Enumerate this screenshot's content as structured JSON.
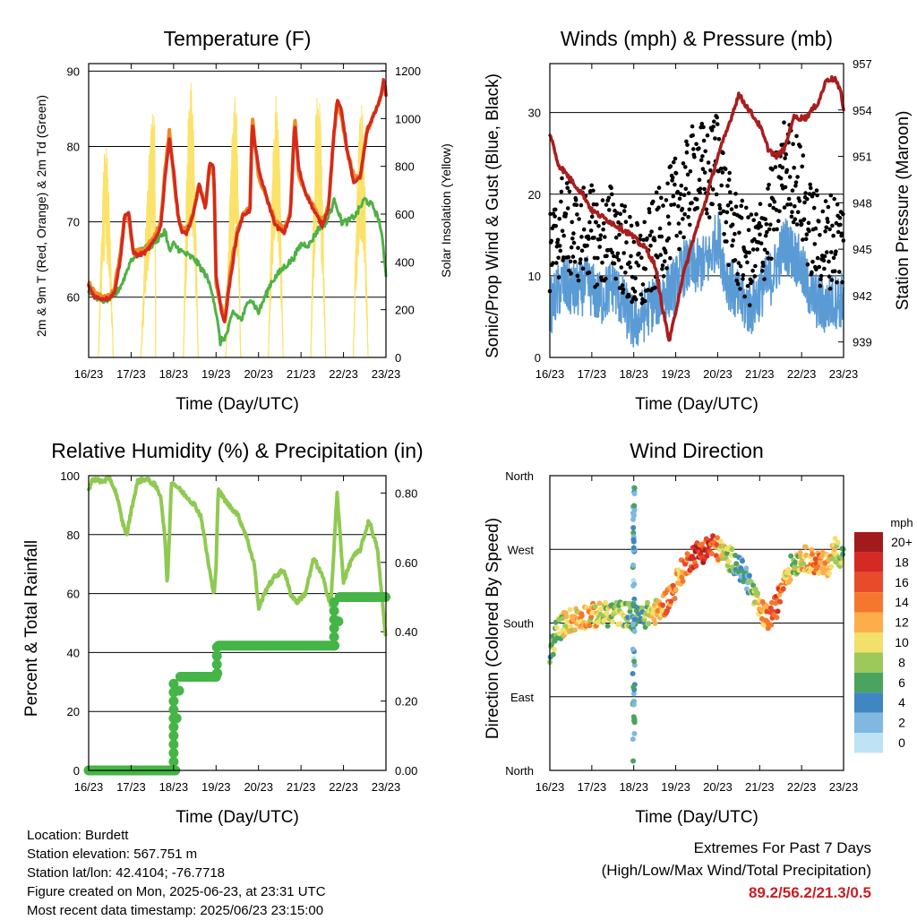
{
  "colors": {
    "t2m": "#f08a24",
    "t9m": "#d42a1e",
    "td": "#4fb146",
    "solar": "#fbe26a",
    "sonic": "#5b9bd5",
    "gust": "#000000",
    "pressure": "#a81e1e",
    "rh": "#90c952",
    "precip": "#44b546",
    "extremes": "#c81e23"
  },
  "chart_data": [
    {
      "id": "temperature",
      "type": "line",
      "title": "Temperature (F)",
      "xlabel": "Time (Day/UTC)",
      "ylabel": "2m & 9m T (Red, Orange) & 2m Td (Green)",
      "y2label": "Solar Insolation (Yellow)",
      "x_ticks": [
        "16/23",
        "17/23",
        "18/23",
        "19/23",
        "20/23",
        "21/23",
        "22/23",
        "23/23"
      ],
      "xlim": [
        0,
        7
      ],
      "ylim": [
        52,
        91
      ],
      "y_ticks": [
        60,
        70,
        80,
        90
      ],
      "y2lim": [
        0,
        1230
      ],
      "y2_ticks": [
        0,
        200,
        400,
        600,
        800,
        1000,
        1200
      ],
      "series": [
        {
          "name": "2m T",
          "color_key": "t2m",
          "axis": "left",
          "x": [
            0,
            0.15,
            0.3,
            0.45,
            0.6,
            0.75,
            0.85,
            0.95,
            1.05,
            1.15,
            1.35,
            1.55,
            1.7,
            1.8,
            1.9,
            2.0,
            2.1,
            2.2,
            2.3,
            2.45,
            2.6,
            2.75,
            2.85,
            2.95,
            3.0,
            3.1,
            3.2,
            3.35,
            3.5,
            3.65,
            3.8,
            3.85,
            4.0,
            4.2,
            4.4,
            4.6,
            4.75,
            4.85,
            4.95,
            5.1,
            5.3,
            5.5,
            5.65,
            5.75,
            5.85,
            5.95,
            6.1,
            6.25,
            6.4,
            6.55,
            6.7,
            6.85,
            6.95,
            7.0
          ],
          "y": [
            62,
            60.5,
            60,
            60,
            61,
            66,
            71,
            70,
            66,
            66,
            66.5,
            68,
            70,
            77,
            82,
            76,
            71,
            69,
            69,
            71,
            75,
            72,
            78,
            76,
            62,
            59,
            57,
            64,
            69,
            71,
            72,
            84,
            76,
            73,
            70,
            69,
            71,
            84,
            76,
            74,
            72,
            70,
            72,
            80,
            86,
            84,
            79,
            76,
            76,
            82,
            84,
            86,
            88,
            87
          ]
        },
        {
          "name": "9m T",
          "color_key": "t9m",
          "axis": "left",
          "x": [
            0,
            0.15,
            0.3,
            0.45,
            0.6,
            0.75,
            0.85,
            0.95,
            1.05,
            1.15,
            1.35,
            1.55,
            1.7,
            1.8,
            1.9,
            2.0,
            2.1,
            2.2,
            2.3,
            2.45,
            2.6,
            2.75,
            2.85,
            2.95,
            3.0,
            3.1,
            3.2,
            3.35,
            3.5,
            3.65,
            3.8,
            3.85,
            4.0,
            4.2,
            4.4,
            4.6,
            4.75,
            4.85,
            4.95,
            5.1,
            5.3,
            5.5,
            5.65,
            5.75,
            5.85,
            5.95,
            6.1,
            6.25,
            6.4,
            6.55,
            6.7,
            6.85,
            6.95,
            7.0
          ],
          "y": [
            61.5,
            60,
            59.8,
            59.8,
            60.5,
            65,
            71,
            71,
            66,
            65.5,
            66,
            67.5,
            69.5,
            76,
            81,
            77,
            71,
            68.5,
            68.5,
            70.5,
            75,
            71.5,
            78,
            77,
            63,
            59,
            56.5,
            63,
            68.5,
            71,
            71.5,
            83,
            77,
            73,
            69.5,
            68.5,
            71,
            83,
            77,
            74,
            71.5,
            69.5,
            72,
            80,
            86,
            85,
            79,
            75,
            76,
            82,
            84,
            86,
            89,
            87
          ]
        },
        {
          "name": "2m Td",
          "color_key": "td",
          "axis": "left",
          "x": [
            0,
            0.3,
            0.6,
            0.8,
            1.0,
            1.2,
            1.5,
            1.7,
            1.8,
            1.9,
            2.0,
            2.2,
            2.5,
            2.75,
            2.9,
            3.0,
            3.1,
            3.25,
            3.4,
            3.6,
            3.8,
            4.0,
            4.3,
            4.6,
            4.8,
            5.0,
            5.2,
            5.4,
            5.6,
            5.8,
            5.95,
            6.1,
            6.3,
            6.5,
            6.7,
            6.85,
            6.95,
            7.0
          ],
          "y": [
            61,
            59.5,
            60,
            62,
            65,
            66,
            67,
            68,
            69,
            66,
            67,
            66,
            65,
            63,
            61,
            58,
            54,
            55,
            58,
            57,
            60,
            58,
            62,
            64,
            65,
            67,
            67,
            69,
            70,
            73,
            70,
            70,
            71,
            73,
            72,
            70,
            66,
            63
          ]
        },
        {
          "name": "Solar Insolation",
          "color_key": "solar",
          "axis": "right",
          "days": [
            {
              "start": 0.23,
              "peak_x": 0.4,
              "peak": 900,
              "end": 0.58
            },
            {
              "start": 1.23,
              "peak_x": 1.55,
              "peak": 1050,
              "end": 1.58
            },
            {
              "start": 2.23,
              "peak_x": 2.4,
              "peak": 1180,
              "end": 2.58
            },
            {
              "start": 3.23,
              "peak_x": 3.45,
              "peak": 1100,
              "end": 3.58
            },
            {
              "start": 4.23,
              "peak_x": 4.42,
              "peak": 1110,
              "end": 4.58
            },
            {
              "start": 5.23,
              "peak_x": 5.4,
              "peak": 1150,
              "end": 5.58
            },
            {
              "start": 6.23,
              "peak_x": 6.42,
              "peak": 1080,
              "end": 6.58
            }
          ]
        }
      ]
    },
    {
      "id": "winds",
      "type": "scatter",
      "title": "Winds (mph) & Pressure (mb)",
      "xlabel": "Time (Day/UTC)",
      "ylabel": "Sonic/Prop Wind & Gust (Blue, Black)",
      "y2label": "Station Pressure (Maroon)",
      "x_ticks": [
        "16/23",
        "17/23",
        "18/23",
        "19/23",
        "20/23",
        "21/23",
        "22/23",
        "23/23"
      ],
      "xlim": [
        0,
        7
      ],
      "ylim": [
        0,
        36
      ],
      "y_ticks": [
        0,
        10,
        20,
        30
      ],
      "y2lim": [
        938,
        957
      ],
      "y2_ticks": [
        939,
        942,
        945,
        948,
        951,
        954,
        957
      ],
      "series": [
        {
          "name": "Sonic/Prop Wind",
          "color_key": "sonic",
          "axis": "left",
          "x": [
            0,
            0.3,
            0.6,
            0.9,
            1.2,
            1.5,
            1.8,
            2.0,
            2.2,
            2.5,
            2.8,
            3.0,
            3.2,
            3.5,
            3.8,
            4.0,
            4.2,
            4.5,
            4.8,
            5.0,
            5.3,
            5.6,
            5.9,
            6.2,
            6.5,
            6.8,
            7.0
          ],
          "y": [
            6,
            9,
            8,
            9,
            7,
            9,
            6,
            4,
            5,
            7,
            8,
            9,
            11,
            11,
            12,
            15,
            10,
            7,
            6,
            8,
            10,
            14,
            12,
            8,
            6,
            7,
            7
          ]
        },
        {
          "name": "Gust",
          "color_key": "gust",
          "axis": "left",
          "x": [
            0,
            0.3,
            0.6,
            0.9,
            1.2,
            1.5,
            1.8,
            2.0,
            2.2,
            2.5,
            2.8,
            3.0,
            3.2,
            3.5,
            3.8,
            4.0,
            4.2,
            4.5,
            4.8,
            5.0,
            5.3,
            5.6,
            5.9,
            6.2,
            6.5,
            6.8,
            7.0
          ],
          "y": [
            10,
            15,
            13,
            14,
            12,
            14,
            11,
            9,
            9,
            12,
            15,
            17,
            18,
            22,
            20,
            24,
            16,
            12,
            10,
            12,
            16,
            22,
            20,
            14,
            12,
            13,
            12
          ]
        },
        {
          "name": "Station Pressure",
          "color_key": "pressure",
          "axis": "right",
          "x": [
            0,
            0.2,
            0.5,
            0.8,
            1.0,
            1.3,
            1.6,
            1.9,
            2.1,
            2.3,
            2.5,
            2.7,
            2.85,
            3.0,
            3.15,
            3.4,
            3.7,
            4.0,
            4.2,
            4.5,
            4.75,
            5.0,
            5.2,
            5.4,
            5.6,
            5.8,
            6.1,
            6.4,
            6.6,
            6.8,
            6.95,
            7.0
          ],
          "y": [
            952.5,
            950.5,
            949.5,
            948.5,
            947.5,
            947,
            946.5,
            946,
            945.5,
            945,
            944,
            941,
            939,
            941,
            943,
            945.5,
            948,
            951,
            952.5,
            955,
            954,
            953,
            951.5,
            951,
            951.5,
            953.5,
            953.5,
            954.5,
            956,
            956,
            955,
            954
          ]
        }
      ]
    },
    {
      "id": "humidity",
      "type": "line",
      "title": "Relative Humidity (%) & Precipitation (in)",
      "xlabel": "Time (Day/UTC)",
      "ylabel": "Percent & Total Rainfall",
      "x_ticks": [
        "16/23",
        "17/23",
        "18/23",
        "19/23",
        "20/23",
        "21/23",
        "22/23",
        "23/23"
      ],
      "xlim": [
        0,
        7
      ],
      "ylim": [
        0,
        100
      ],
      "y_ticks": [
        0,
        20,
        40,
        60,
        80,
        100
      ],
      "y2lim": [
        0,
        0.85
      ],
      "y2_ticks": [
        "0.00",
        "0.20",
        "0.40",
        "0.60",
        "0.80"
      ],
      "series": [
        {
          "name": "Relative Humidity",
          "color_key": "rh",
          "axis": "left",
          "x": [
            0,
            0.1,
            0.3,
            0.5,
            0.65,
            0.8,
            0.9,
            1.0,
            1.15,
            1.35,
            1.55,
            1.7,
            1.8,
            1.85,
            1.95,
            2.1,
            2.3,
            2.5,
            2.65,
            2.8,
            2.95,
            3.0,
            3.05,
            3.3,
            3.5,
            3.7,
            3.9,
            4.0,
            4.2,
            4.4,
            4.6,
            4.75,
            4.9,
            5.1,
            5.3,
            5.5,
            5.7,
            5.85,
            6.0,
            6.2,
            6.4,
            6.6,
            6.8,
            6.95,
            7.0
          ],
          "y": [
            95,
            99,
            98,
            99,
            94,
            84,
            80,
            88,
            98,
            99,
            97,
            93,
            78,
            62,
            98,
            96,
            93,
            90,
            86,
            72,
            59,
            70,
            95,
            90,
            87,
            80,
            70,
            55,
            62,
            66,
            68,
            60,
            57,
            60,
            72,
            66,
            56,
            94,
            64,
            72,
            75,
            85,
            75,
            52,
            44
          ]
        },
        {
          "name": "Total Precipitation",
          "color_key": "precip",
          "axis": "right",
          "x": [
            0,
            1.95,
            2.05,
            2.1,
            2.15,
            3.0,
            3.05,
            3.4,
            5.75,
            5.82,
            5.9,
            7.0
          ],
          "y": [
            0,
            0,
            0.15,
            0.23,
            0.27,
            0.28,
            0.36,
            0.36,
            0.36,
            0.43,
            0.5,
            0.5
          ]
        }
      ]
    },
    {
      "id": "wind-direction",
      "type": "scatter",
      "title": "Wind Direction",
      "xlabel": "Time (Day/UTC)",
      "ylabel": "Direction (Colored By Speed)",
      "x_ticks": [
        "16/23",
        "17/23",
        "18/23",
        "19/23",
        "20/23",
        "21/23",
        "22/23",
        "23/23"
      ],
      "xlim": [
        0,
        7
      ],
      "ylim": [
        0,
        360
      ],
      "y_ticks": [
        "North",
        "East",
        "South",
        "West",
        "North"
      ],
      "colorbar": {
        "title": "mph",
        "labels": [
          "20+",
          "18",
          "16",
          "14",
          "12",
          "10",
          "8",
          "6",
          "4",
          "2",
          "0"
        ],
        "colors": [
          "#a31a1c",
          "#d42a24",
          "#e84b2a",
          "#f4772d",
          "#fbae4b",
          "#f3e06a",
          "#9cc95a",
          "#4aa35f",
          "#3f86c2",
          "#80b8e2",
          "#bde3f5"
        ]
      },
      "series": [
        {
          "name": "Direction",
          "x": [
            0,
            0.15,
            0.4,
            0.8,
            1.2,
            1.6,
            1.9,
            2.0,
            2.3,
            2.6,
            2.9,
            3.1,
            3.4,
            3.7,
            3.9,
            4.1,
            4.4,
            4.7,
            5.0,
            5.2,
            5.4,
            5.6,
            5.8,
            6.0,
            6.3,
            6.6,
            6.8,
            7.0
          ],
          "y": [
            140,
            170,
            182,
            188,
            190,
            192,
            190,
            185,
            190,
            195,
            215,
            240,
            262,
            270,
            275,
            265,
            255,
            235,
            195,
            185,
            200,
            240,
            250,
            260,
            255,
            250,
            270,
            260
          ],
          "speed": [
            6,
            8,
            10,
            12,
            10,
            8,
            6,
            4,
            8,
            12,
            14,
            12,
            16,
            18,
            16,
            10,
            6,
            4,
            12,
            14,
            16,
            12,
            8,
            10,
            14,
            12,
            10,
            8
          ]
        },
        {
          "name": "Direction scatter 18/23",
          "x": [
            2.0,
            2.0,
            2.0,
            2.0,
            2.0,
            2.0,
            2.0,
            2.0
          ],
          "y": [
            340,
            300,
            270,
            240,
            200,
            150,
            110,
            60
          ],
          "speed": [
            4,
            6,
            2,
            4,
            2,
            4,
            2,
            4
          ]
        }
      ]
    }
  ],
  "info": {
    "location": "Location: Burdett",
    "elevation": "Station elevation: 567.751 m",
    "latlon": "Station lat/lon: 42.4104; -76.7718",
    "created": "Figure created on Mon, 2025-06-23, at 23:31 UTC",
    "recent": "Most recent data timestamp: 2025/06/23 23:15:00"
  },
  "extremes": {
    "title": "Extremes For Past 7 Days",
    "subtitle": "(High/Low/Max Wind/Total Precipitation)",
    "value": "89.2/56.2/21.3/0.5"
  }
}
